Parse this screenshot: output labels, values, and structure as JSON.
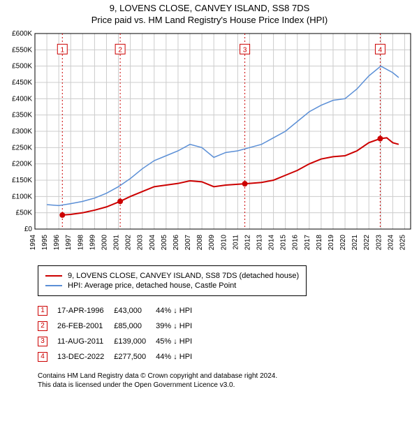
{
  "title_line1": "9, LOVENS CLOSE, CANVEY ISLAND, SS8 7DS",
  "title_line2": "Price paid vs. HM Land Registry's House Price Index (HPI)",
  "chart": {
    "type": "line",
    "background_color": "#ffffff",
    "grid_color": "#cccccc",
    "axis_color": "#000000",
    "ylabel_fontsize": 10,
    "xlabel_fontsize": 10,
    "x": {
      "min": 1994,
      "max": 2025.5,
      "ticks": [
        1994,
        1995,
        1996,
        1997,
        1998,
        1999,
        2000,
        2001,
        2002,
        2003,
        2004,
        2005,
        2006,
        2007,
        2008,
        2009,
        2010,
        2011,
        2012,
        2013,
        2014,
        2015,
        2016,
        2017,
        2018,
        2019,
        2020,
        2021,
        2022,
        2023,
        2024,
        2025
      ]
    },
    "y": {
      "min": 0,
      "max": 600000,
      "ticks": [
        0,
        50000,
        100000,
        150000,
        200000,
        250000,
        300000,
        350000,
        400000,
        450000,
        500000,
        550000,
        600000
      ],
      "labels": [
        "£0",
        "£50K",
        "£100K",
        "£150K",
        "£200K",
        "£250K",
        "£300K",
        "£350K",
        "£400K",
        "£450K",
        "£500K",
        "£550K",
        "£600K"
      ]
    },
    "series": [
      {
        "name": "price_paid",
        "color": "#cc0000",
        "line_width": 2,
        "points": [
          [
            1996.3,
            43000
          ],
          [
            1997,
            45000
          ],
          [
            1998,
            50000
          ],
          [
            1999,
            58000
          ],
          [
            2000,
            68000
          ],
          [
            2001.15,
            85000
          ],
          [
            2002,
            100000
          ],
          [
            2003,
            115000
          ],
          [
            2004,
            130000
          ],
          [
            2005,
            135000
          ],
          [
            2006,
            140000
          ],
          [
            2007,
            148000
          ],
          [
            2008,
            145000
          ],
          [
            2009,
            130000
          ],
          [
            2010,
            135000
          ],
          [
            2011.6,
            139000
          ],
          [
            2012,
            140000
          ],
          [
            2013,
            143000
          ],
          [
            2014,
            150000
          ],
          [
            2015,
            165000
          ],
          [
            2016,
            180000
          ],
          [
            2017,
            200000
          ],
          [
            2018,
            215000
          ],
          [
            2019,
            222000
          ],
          [
            2020,
            225000
          ],
          [
            2021,
            240000
          ],
          [
            2022,
            265000
          ],
          [
            2022.95,
            277500
          ],
          [
            2023.5,
            280000
          ],
          [
            2024,
            265000
          ],
          [
            2024.5,
            260000
          ]
        ]
      },
      {
        "name": "hpi",
        "color": "#5b8fd6",
        "line_width": 1.5,
        "points": [
          [
            1995,
            75000
          ],
          [
            1996,
            72000
          ],
          [
            1997,
            78000
          ],
          [
            1998,
            85000
          ],
          [
            1999,
            95000
          ],
          [
            2000,
            110000
          ],
          [
            2001,
            130000
          ],
          [
            2002,
            155000
          ],
          [
            2003,
            185000
          ],
          [
            2004,
            210000
          ],
          [
            2005,
            225000
          ],
          [
            2006,
            240000
          ],
          [
            2007,
            260000
          ],
          [
            2008,
            250000
          ],
          [
            2009,
            220000
          ],
          [
            2010,
            235000
          ],
          [
            2011,
            240000
          ],
          [
            2012,
            250000
          ],
          [
            2013,
            260000
          ],
          [
            2014,
            280000
          ],
          [
            2015,
            300000
          ],
          [
            2016,
            330000
          ],
          [
            2017,
            360000
          ],
          [
            2018,
            380000
          ],
          [
            2019,
            395000
          ],
          [
            2020,
            400000
          ],
          [
            2021,
            430000
          ],
          [
            2022,
            470000
          ],
          [
            2023,
            500000
          ],
          [
            2024,
            480000
          ],
          [
            2024.5,
            465000
          ]
        ]
      }
    ],
    "markers": [
      {
        "n": "1",
        "x": 1996.3,
        "y_marker": 43000,
        "label_y": 550000
      },
      {
        "n": "2",
        "x": 2001.15,
        "y_marker": 85000,
        "label_y": 550000
      },
      {
        "n": "3",
        "x": 2011.6,
        "y_marker": 139000,
        "label_y": 550000
      },
      {
        "n": "4",
        "x": 2022.95,
        "y_marker": 277500,
        "label_y": 550000
      }
    ],
    "marker_color": "#cc0000",
    "marker_line_dash": "2,3"
  },
  "legend": {
    "series1": {
      "color": "#cc0000",
      "label": "9, LOVENS CLOSE, CANVEY ISLAND, SS8 7DS (detached house)"
    },
    "series2": {
      "color": "#5b8fd6",
      "label": "HPI: Average price, detached house, Castle Point"
    }
  },
  "events": [
    {
      "n": "1",
      "date": "17-APR-1996",
      "price": "£43,000",
      "diff": "44% ↓ HPI"
    },
    {
      "n": "2",
      "date": "26-FEB-2001",
      "price": "£85,000",
      "diff": "39% ↓ HPI"
    },
    {
      "n": "3",
      "date": "11-AUG-2011",
      "price": "£139,000",
      "diff": "45% ↓ HPI"
    },
    {
      "n": "4",
      "date": "13-DEC-2022",
      "price": "£277,500",
      "diff": "44% ↓ HPI"
    }
  ],
  "footer_line1": "Contains HM Land Registry data © Crown copyright and database right 2024.",
  "footer_line2": "This data is licensed under the Open Government Licence v3.0."
}
